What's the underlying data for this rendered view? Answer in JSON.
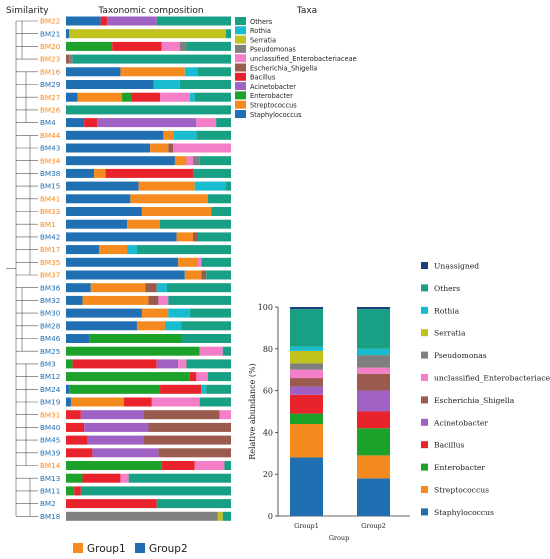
{
  "headers": {
    "similarity": "Similarity",
    "composition": "Taxonomic composition",
    "taxa": "Taxa"
  },
  "colors": {
    "Staphylococcus": "#1f6fb2",
    "Streptococcus": "#f58a1f",
    "Enterobacter": "#1ca12a",
    "Bacillus": "#e8232b",
    "Acinetobacter": "#a061c4",
    "Escherichia_Shigella": "#9a5a4e",
    "unclassified_Enterobacteriaceae": "#f47ec8",
    "Pseudomonas": "#7f7f7f",
    "Serratia": "#c2c21e",
    "Rothia": "#17bcd0",
    "Others": "#17a084",
    "Unassigned": "#1d3f7a",
    "group1": "#f58a1f",
    "group2": "#1f6fb2"
  },
  "group_legend": [
    {
      "label": "Group1",
      "color": "#f58a1f"
    },
    {
      "label": "Group2",
      "color": "#1f6fb2"
    }
  ],
  "chart_data": [
    {
      "type": "bar",
      "orientation": "horizontal",
      "stacked": true,
      "title": "Taxonomic composition",
      "taxa_legend_title": "Taxa",
      "legend_position": "right",
      "xlim": [
        0,
        100
      ],
      "taxa": [
        "Staphylococcus",
        "Streptococcus",
        "Enterobacter",
        "Bacillus",
        "Acinetobacter",
        "Escherichia_Shigella",
        "unclassified_Enterobacteriaceae",
        "Pseudomonas",
        "Serratia",
        "Rothia",
        "Others"
      ],
      "taxa_legend_order": [
        "Others",
        "Rothia",
        "Serratia",
        "Pseudomonas",
        "unclassified_Enterobacteriaceae",
        "Escherichia_Shigella",
        "Bacillus",
        "Acinetobacter",
        "Enterobacter",
        "Streptococcus",
        "Staphylococcus"
      ],
      "samples": [
        {
          "name": "BM22",
          "group": "Group1",
          "values": [
            21,
            0,
            0,
            4,
            30,
            0,
            0,
            0,
            0,
            0,
            45
          ]
        },
        {
          "name": "BM21",
          "group": "Group2",
          "values": [
            2,
            0,
            0,
            0,
            0,
            0,
            0,
            0,
            95,
            0,
            3
          ]
        },
        {
          "name": "BM20",
          "group": "Group1",
          "values": [
            0,
            0,
            28,
            30,
            0,
            0,
            11,
            4,
            0,
            0,
            27
          ]
        },
        {
          "name": "BM23",
          "group": "Group1",
          "values": [
            0,
            0,
            0,
            0,
            0,
            2,
            0,
            2,
            0,
            0,
            96
          ]
        },
        {
          "name": "BM16",
          "group": "Group1",
          "values": [
            33,
            39,
            0,
            0,
            0,
            0,
            0,
            0,
            0,
            8,
            20
          ]
        },
        {
          "name": "BM29",
          "group": "Group2",
          "values": [
            53,
            0,
            0,
            0,
            0,
            0,
            0,
            0,
            0,
            16,
            31
          ]
        },
        {
          "name": "BM27",
          "group": "Group1",
          "values": [
            7,
            27,
            6,
            17,
            0,
            0,
            18,
            0,
            0,
            3,
            22
          ]
        },
        {
          "name": "BM26",
          "group": "Group1",
          "values": [
            0,
            0,
            0,
            0,
            0,
            0,
            0,
            0,
            0,
            0,
            100
          ]
        },
        {
          "name": "BM4",
          "group": "Group2",
          "values": [
            11,
            0,
            0,
            8,
            60,
            0,
            12,
            0,
            0,
            0,
            9
          ]
        },
        {
          "name": "BM44",
          "group": "Group1",
          "values": [
            59,
            6,
            0,
            0,
            0,
            0,
            0,
            0,
            0,
            14,
            21
          ]
        },
        {
          "name": "BM43",
          "group": "Group2",
          "values": [
            51,
            11,
            0,
            0,
            0,
            3,
            35,
            0,
            0,
            0,
            0
          ]
        },
        {
          "name": "BM34",
          "group": "Group1",
          "values": [
            66,
            7,
            0,
            0,
            0,
            0,
            4,
            4,
            0,
            0,
            19
          ]
        },
        {
          "name": "BM38",
          "group": "Group2",
          "values": [
            17,
            7,
            0,
            53,
            0,
            0,
            0,
            0,
            0,
            0,
            23
          ]
        },
        {
          "name": "BM15",
          "group": "Group2",
          "values": [
            44,
            34,
            0,
            0,
            0,
            0,
            0,
            0,
            0,
            19,
            3
          ]
        },
        {
          "name": "BM41",
          "group": "Group1",
          "values": [
            39,
            47,
            0,
            0,
            0,
            0,
            0,
            0,
            0,
            0,
            14
          ]
        },
        {
          "name": "BM33",
          "group": "Group1",
          "values": [
            46,
            42,
            0,
            0,
            0,
            0,
            0,
            0,
            0,
            0,
            12
          ]
        },
        {
          "name": "BM1",
          "group": "Group1",
          "values": [
            37,
            20,
            0,
            0,
            0,
            0,
            0,
            0,
            0,
            0,
            43
          ]
        },
        {
          "name": "BM42",
          "group": "Group2",
          "values": [
            67,
            10,
            0,
            0,
            0,
            3,
            0,
            0,
            0,
            0,
            20
          ]
        },
        {
          "name": "BM17",
          "group": "Group1",
          "values": [
            20,
            17,
            0,
            0,
            0,
            0,
            0,
            0,
            0,
            6,
            57
          ]
        },
        {
          "name": "BM35",
          "group": "Group1",
          "values": [
            68,
            12,
            0,
            0,
            0,
            0,
            2,
            0,
            0,
            0,
            18
          ]
        },
        {
          "name": "BM37",
          "group": "Group1",
          "values": [
            72,
            10,
            0,
            0,
            0,
            3,
            0,
            0,
            0,
            0,
            15
          ]
        },
        {
          "name": "BM36",
          "group": "Group2",
          "values": [
            15,
            33,
            0,
            0,
            0,
            7,
            0,
            0,
            0,
            6,
            39
          ]
        },
        {
          "name": "BM32",
          "group": "Group2",
          "values": [
            10,
            40,
            0,
            0,
            0,
            6,
            6,
            0,
            0,
            0,
            38
          ]
        },
        {
          "name": "BM30",
          "group": "Group2",
          "values": [
            46,
            16,
            0,
            0,
            0,
            0,
            0,
            0,
            0,
            13,
            25
          ]
        },
        {
          "name": "BM28",
          "group": "Group2",
          "values": [
            43,
            17,
            0,
            0,
            0,
            0,
            0,
            0,
            0,
            10,
            30
          ]
        },
        {
          "name": "BM46",
          "group": "Group2",
          "values": [
            14,
            0,
            56,
            0,
            0,
            0,
            0,
            0,
            0,
            0,
            30
          ]
        },
        {
          "name": "BM25",
          "group": "Group2",
          "values": [
            0,
            0,
            81,
            0,
            0,
            0,
            14,
            0,
            0,
            0,
            5
          ]
        },
        {
          "name": "BM3",
          "group": "Group2",
          "values": [
            0,
            0,
            4,
            51,
            13,
            0,
            5,
            0,
            0,
            0,
            27
          ]
        },
        {
          "name": "BM12",
          "group": "Group2",
          "values": [
            0,
            0,
            75,
            4,
            0,
            0,
            7,
            0,
            0,
            0,
            14
          ]
        },
        {
          "name": "BM24",
          "group": "Group2",
          "values": [
            2,
            0,
            55,
            25,
            0,
            0,
            0,
            0,
            0,
            3,
            15
          ]
        },
        {
          "name": "BM19",
          "group": "Group2",
          "values": [
            3,
            32,
            0,
            17,
            0,
            0,
            29,
            0,
            0,
            0,
            19
          ]
        },
        {
          "name": "BM31",
          "group": "Group1",
          "values": [
            0,
            0,
            0,
            9,
            38,
            46,
            7,
            0,
            0,
            0,
            0
          ]
        },
        {
          "name": "BM40",
          "group": "Group2",
          "values": [
            0,
            0,
            0,
            11,
            39,
            50,
            0,
            0,
            0,
            0,
            0
          ]
        },
        {
          "name": "BM45",
          "group": "Group2",
          "values": [
            0,
            0,
            0,
            13,
            34,
            53,
            0,
            0,
            0,
            0,
            0
          ]
        },
        {
          "name": "BM39",
          "group": "Group2",
          "values": [
            0,
            0,
            0,
            16,
            40,
            44,
            0,
            0,
            0,
            0,
            0
          ]
        },
        {
          "name": "BM14",
          "group": "Group1",
          "values": [
            0,
            0,
            58,
            20,
            0,
            0,
            18,
            0,
            0,
            0,
            4
          ]
        },
        {
          "name": "BM13",
          "group": "Group2",
          "values": [
            0,
            0,
            10,
            23,
            0,
            0,
            5,
            0,
            0,
            0,
            62
          ]
        },
        {
          "name": "BM11",
          "group": "Group2",
          "values": [
            0,
            0,
            5,
            4,
            0,
            0,
            0,
            0,
            0,
            0,
            91
          ]
        },
        {
          "name": "BM2",
          "group": "Group2",
          "values": [
            0,
            0,
            0,
            55,
            0,
            0,
            0,
            0,
            0,
            0,
            45
          ]
        },
        {
          "name": "BM18",
          "group": "Group2",
          "values": [
            0,
            0,
            0,
            0,
            0,
            0,
            0,
            92,
            3,
            0,
            5
          ]
        }
      ]
    },
    {
      "type": "bar",
      "stacked": true,
      "ylabel": "Relative abundance (%)",
      "xlabel": "Group",
      "ylim": [
        0,
        100
      ],
      "yticks": [
        "0",
        "20",
        "40",
        "60",
        "80",
        "100"
      ],
      "categories": [
        "Group1",
        "Group2"
      ],
      "legend_position": "left",
      "series": [
        {
          "name": "Staphylococcus",
          "values": [
            28,
            18
          ]
        },
        {
          "name": "Streptococcus",
          "values": [
            16,
            11
          ]
        },
        {
          "name": "Enterobacter",
          "values": [
            5,
            13
          ]
        },
        {
          "name": "Bacillus",
          "values": [
            9,
            8
          ]
        },
        {
          "name": "Acinetobacter",
          "values": [
            4,
            10
          ]
        },
        {
          "name": "Escherichia_Shigella",
          "values": [
            4,
            8
          ]
        },
        {
          "name": "unclassified_Enterobacteriaceae",
          "values": [
            4,
            3
          ]
        },
        {
          "name": "Pseudomonas",
          "values": [
            3,
            6
          ]
        },
        {
          "name": "Serratia",
          "values": [
            6,
            0
          ]
        },
        {
          "name": "Rothia",
          "values": [
            2,
            3
          ]
        },
        {
          "name": "Others",
          "values": [
            18,
            19
          ]
        },
        {
          "name": "Unassigned",
          "values": [
            1,
            1
          ]
        }
      ],
      "legend_order": [
        "Unassigned",
        "Others",
        "Rothia",
        "Serratia",
        "Pseudomonas",
        "unclassified_Enterobacteriaceae",
        "Escherichia_Shigella",
        "Acinetobacter",
        "Bacillus",
        "Enterobacter",
        "Streptococcus",
        "Staphylococcus"
      ]
    }
  ]
}
